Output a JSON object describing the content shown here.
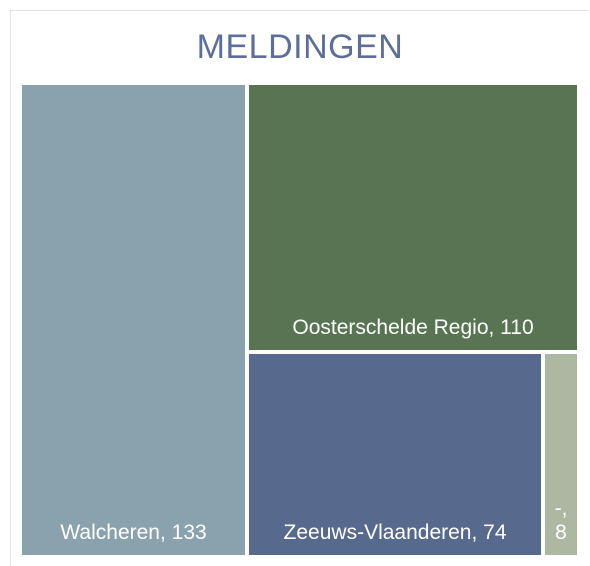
{
  "chart_data": {
    "type": "treemap",
    "title": "MELDINGEN",
    "values": [
      133,
      110,
      74,
      8
    ],
    "value_labels": [
      "Walcheren, 133",
      "Oosterschelde Regio, 110",
      "Zeeuws-Vlaanderen, 74",
      "-, 8"
    ],
    "colors": [
      "#8aa2ae",
      "#587452",
      "#576a8e",
      "#adb8a3"
    ]
  }
}
